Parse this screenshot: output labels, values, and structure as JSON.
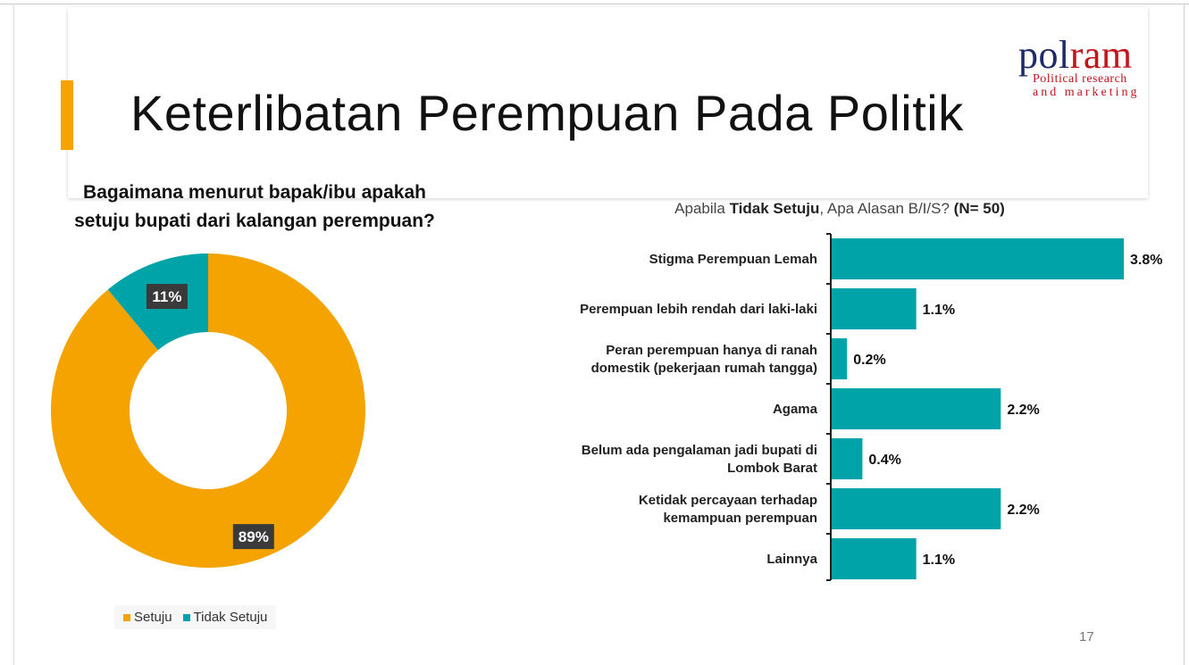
{
  "slide": {
    "title": "Keterlibatan Perempuan Pada Politik",
    "page_number": "17",
    "accent_color": "#f4a300"
  },
  "logo": {
    "part1": "pol",
    "part2": "ram",
    "tagline_line1": "Political research",
    "tagline_line2": "and marketing",
    "colors": {
      "navy": "#1f2a68",
      "red": "#c0161c"
    }
  },
  "left_question": {
    "line1": "Bagaimana menurut bapak/ibu apakah",
    "line2": "setuju bupati dari kalangan perempuan?"
  },
  "right_question": {
    "prefix": "Apabila ",
    "bold": "Tidak Setuju",
    "middle": ", Apa Alasan B/I/S? ",
    "n": "(N= 50)"
  },
  "legend": {
    "items": [
      {
        "label": "Setuju",
        "color": "#f4a300"
      },
      {
        "label": "Tidak Setuju",
        "color": "#00a3a8"
      }
    ]
  },
  "chart_data": [
    {
      "type": "pie",
      "variant": "donut",
      "slices": [
        {
          "label": "Setuju",
          "value": 89,
          "display": "89%",
          "color": "#f4a300"
        },
        {
          "label": "Tidak Setuju",
          "value": 11,
          "display": "11%",
          "color": "#00a3a8"
        }
      ],
      "legend_position": "bottom"
    },
    {
      "type": "bar",
      "orientation": "horizontal",
      "color": "#00a3a8",
      "categories": [
        "Stigma Perempuan Lemah",
        "Perempuan lebih rendah dari laki-laki",
        "Peran perempuan hanya di ranah domestik (pekerjaan rumah tangga)",
        "Agama",
        "Belum ada pengalaman jadi bupati di Lombok Barat",
        "Ketidak percayaan terhadap kemampuan perempuan",
        "Lainnya"
      ],
      "category_lines": [
        [
          "Stigma Perempuan Lemah"
        ],
        [
          "Perempuan lebih rendah dari laki-laki"
        ],
        [
          "Peran perempuan hanya di ranah",
          "domestik (pekerjaan rumah tangga)"
        ],
        [
          "Agama"
        ],
        [
          "Belum ada pengalaman jadi bupati di",
          "Lombok Barat"
        ],
        [
          "Ketidak percayaan terhadap",
          "kemampuan perempuan"
        ],
        [
          "Lainnya"
        ]
      ],
      "values": [
        3.8,
        1.1,
        0.2,
        2.2,
        0.4,
        2.2,
        1.1
      ],
      "data_labels": [
        "3.8%",
        "1.1%",
        "0.2%",
        "2.2%",
        "0.4%",
        "2.2%",
        "1.1%"
      ],
      "xlim": [
        0,
        3.8
      ],
      "grid": false
    }
  ]
}
